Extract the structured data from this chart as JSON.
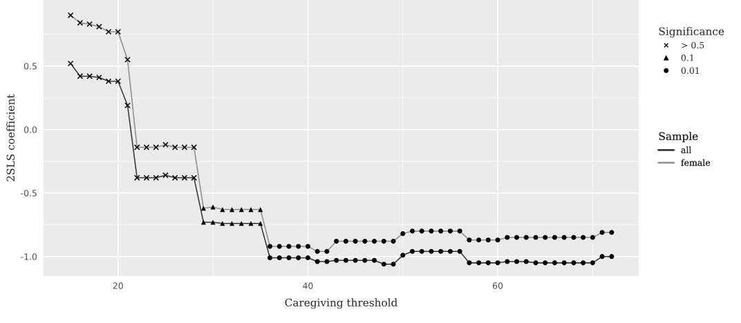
{
  "chart_data": {
    "type": "line",
    "xlabel": "Caregiving threshold",
    "ylabel": "2SLS coefficient",
    "legend_title": [
      "Significance",
      "Sample"
    ],
    "xlim": [
      12.15,
      74.85
    ],
    "ylim": [
      -1.154,
      1.02
    ],
    "xticks": [
      20,
      40,
      60
    ],
    "yticks": [
      {
        "value": -1.0,
        "label": "-1.0"
      },
      {
        "value": -0.5,
        "label": "-0.5"
      },
      {
        "value": 0.0,
        "label": "0.0"
      },
      {
        "value": 0.5,
        "label": "0.5"
      }
    ],
    "grid": true,
    "legend": "right",
    "series": [
      {
        "name": "all",
        "color": "#333333",
        "marker": "none",
        "x": [
          15,
          16,
          17,
          18,
          19,
          20,
          21,
          22,
          23,
          24,
          25,
          26,
          27,
          28,
          29,
          30,
          31,
          32,
          33,
          34,
          35,
          36,
          37,
          38,
          39,
          40,
          41,
          42,
          43,
          44,
          45,
          46,
          47,
          48,
          49,
          50,
          51,
          52,
          53,
          54,
          55,
          56,
          57,
          58,
          59,
          60,
          61,
          62,
          63,
          64,
          65,
          66,
          67,
          68,
          69,
          70,
          71,
          72
        ],
        "values": [
          0.52,
          0.42,
          0.42,
          0.41,
          0.38,
          0.38,
          0.19,
          -0.38,
          -0.38,
          -0.38,
          -0.36,
          -0.38,
          -0.38,
          -0.38,
          -0.73,
          -0.73,
          -0.74,
          -0.74,
          -0.74,
          -0.74,
          -0.74,
          -1.01,
          -1.01,
          -1.01,
          -1.01,
          -1.01,
          -1.04,
          -1.04,
          -1.03,
          -1.03,
          -1.03,
          -1.03,
          -1.03,
          -1.06,
          -1.06,
          -0.99,
          -0.96,
          -0.96,
          -0.96,
          -0.96,
          -0.96,
          -0.96,
          -1.05,
          -1.05,
          -1.05,
          -1.05,
          -1.04,
          -1.04,
          -1.04,
          -1.05,
          -1.05,
          -1.05,
          -1.05,
          -1.05,
          -1.05,
          -1.05,
          -1.0,
          -1.0
        ]
      },
      {
        "name": "female",
        "color": "#8c8c8c",
        "marker": "none",
        "x": [
          15,
          16,
          17,
          18,
          19,
          20,
          21,
          22,
          23,
          24,
          25,
          26,
          27,
          28,
          29,
          30,
          31,
          32,
          33,
          34,
          35,
          36,
          37,
          38,
          39,
          40,
          41,
          42,
          43,
          44,
          45,
          46,
          47,
          48,
          49,
          50,
          51,
          52,
          53,
          54,
          55,
          56,
          57,
          58,
          59,
          60,
          61,
          62,
          63,
          64,
          65,
          66,
          67,
          68,
          69,
          70,
          71,
          72
        ],
        "values": [
          0.9,
          0.84,
          0.83,
          0.81,
          0.77,
          0.77,
          0.55,
          -0.14,
          -0.14,
          -0.14,
          -0.12,
          -0.14,
          -0.14,
          -0.14,
          -0.62,
          -0.61,
          -0.63,
          -0.63,
          -0.63,
          -0.63,
          -0.63,
          -0.92,
          -0.92,
          -0.92,
          -0.92,
          -0.92,
          -0.96,
          -0.96,
          -0.88,
          -0.88,
          -0.88,
          -0.88,
          -0.88,
          -0.88,
          -0.88,
          -0.82,
          -0.8,
          -0.8,
          -0.8,
          -0.8,
          -0.8,
          -0.8,
          -0.87,
          -0.87,
          -0.87,
          -0.87,
          -0.85,
          -0.85,
          -0.85,
          -0.85,
          -0.85,
          -0.85,
          -0.85,
          -0.85,
          -0.85,
          -0.85,
          -0.81,
          -0.81
        ]
      },
      {
        "name": "> 0.5",
        "type": "scatter",
        "color": "#000000",
        "marker": "cross",
        "x": [
          15,
          16,
          17,
          18,
          19,
          20,
          21,
          22,
          23,
          24,
          25,
          26,
          27,
          28,
          15,
          16,
          17,
          18,
          19,
          20,
          21,
          22,
          23,
          24,
          25,
          26,
          27,
          28
        ],
        "values": [
          0.52,
          0.42,
          0.42,
          0.41,
          0.38,
          0.38,
          0.19,
          -0.38,
          -0.38,
          -0.38,
          -0.36,
          -0.38,
          -0.38,
          -0.38,
          0.9,
          0.84,
          0.83,
          0.81,
          0.77,
          0.77,
          0.55,
          -0.14,
          -0.14,
          -0.14,
          -0.12,
          -0.14,
          -0.14,
          -0.14
        ]
      },
      {
        "name": "0.1",
        "type": "scatter",
        "color": "#000000",
        "marker": "triangle",
        "x": [
          29,
          30,
          31,
          32,
          33,
          34,
          35,
          29,
          30,
          31,
          32,
          33,
          34,
          35
        ],
        "values": [
          -0.73,
          -0.73,
          -0.74,
          -0.74,
          -0.74,
          -0.74,
          -0.74,
          -0.62,
          -0.61,
          -0.63,
          -0.63,
          -0.63,
          -0.63,
          -0.63
        ]
      },
      {
        "name": "0.01",
        "type": "scatter",
        "color": "#000000",
        "marker": "circle",
        "x": [
          36,
          37,
          38,
          39,
          40,
          41,
          42,
          43,
          44,
          45,
          46,
          47,
          48,
          49,
          50,
          51,
          52,
          53,
          54,
          55,
          56,
          57,
          58,
          59,
          60,
          61,
          62,
          63,
          64,
          65,
          66,
          67,
          68,
          69,
          70,
          71,
          72,
          36,
          37,
          38,
          39,
          40,
          41,
          42,
          43,
          44,
          45,
          46,
          47,
          48,
          49,
          50,
          51,
          52,
          53,
          54,
          55,
          56,
          57,
          58,
          59,
          60,
          61,
          62,
          63,
          64,
          65,
          66,
          67,
          68,
          69,
          70,
          71,
          72
        ],
        "values": [
          -1.01,
          -1.01,
          -1.01,
          -1.01,
          -1.01,
          -1.04,
          -1.04,
          -1.03,
          -1.03,
          -1.03,
          -1.03,
          -1.03,
          -1.06,
          -1.06,
          -0.99,
          -0.96,
          -0.96,
          -0.96,
          -0.96,
          -0.96,
          -0.96,
          -1.05,
          -1.05,
          -1.05,
          -1.05,
          -1.04,
          -1.04,
          -1.04,
          -1.05,
          -1.05,
          -1.05,
          -1.05,
          -1.05,
          -1.05,
          -1.05,
          -1.0,
          -1.0,
          -0.92,
          -0.92,
          -0.92,
          -0.92,
          -0.92,
          -0.96,
          -0.96,
          -0.88,
          -0.88,
          -0.88,
          -0.88,
          -0.88,
          -0.88,
          -0.88,
          -0.82,
          -0.8,
          -0.8,
          -0.8,
          -0.8,
          -0.8,
          -0.8,
          -0.87,
          -0.87,
          -0.87,
          -0.87,
          -0.85,
          -0.85,
          -0.85,
          -0.85,
          -0.85,
          -0.85,
          -0.85,
          -0.85,
          -0.85,
          -0.85,
          -0.81,
          -0.81
        ]
      }
    ]
  }
}
